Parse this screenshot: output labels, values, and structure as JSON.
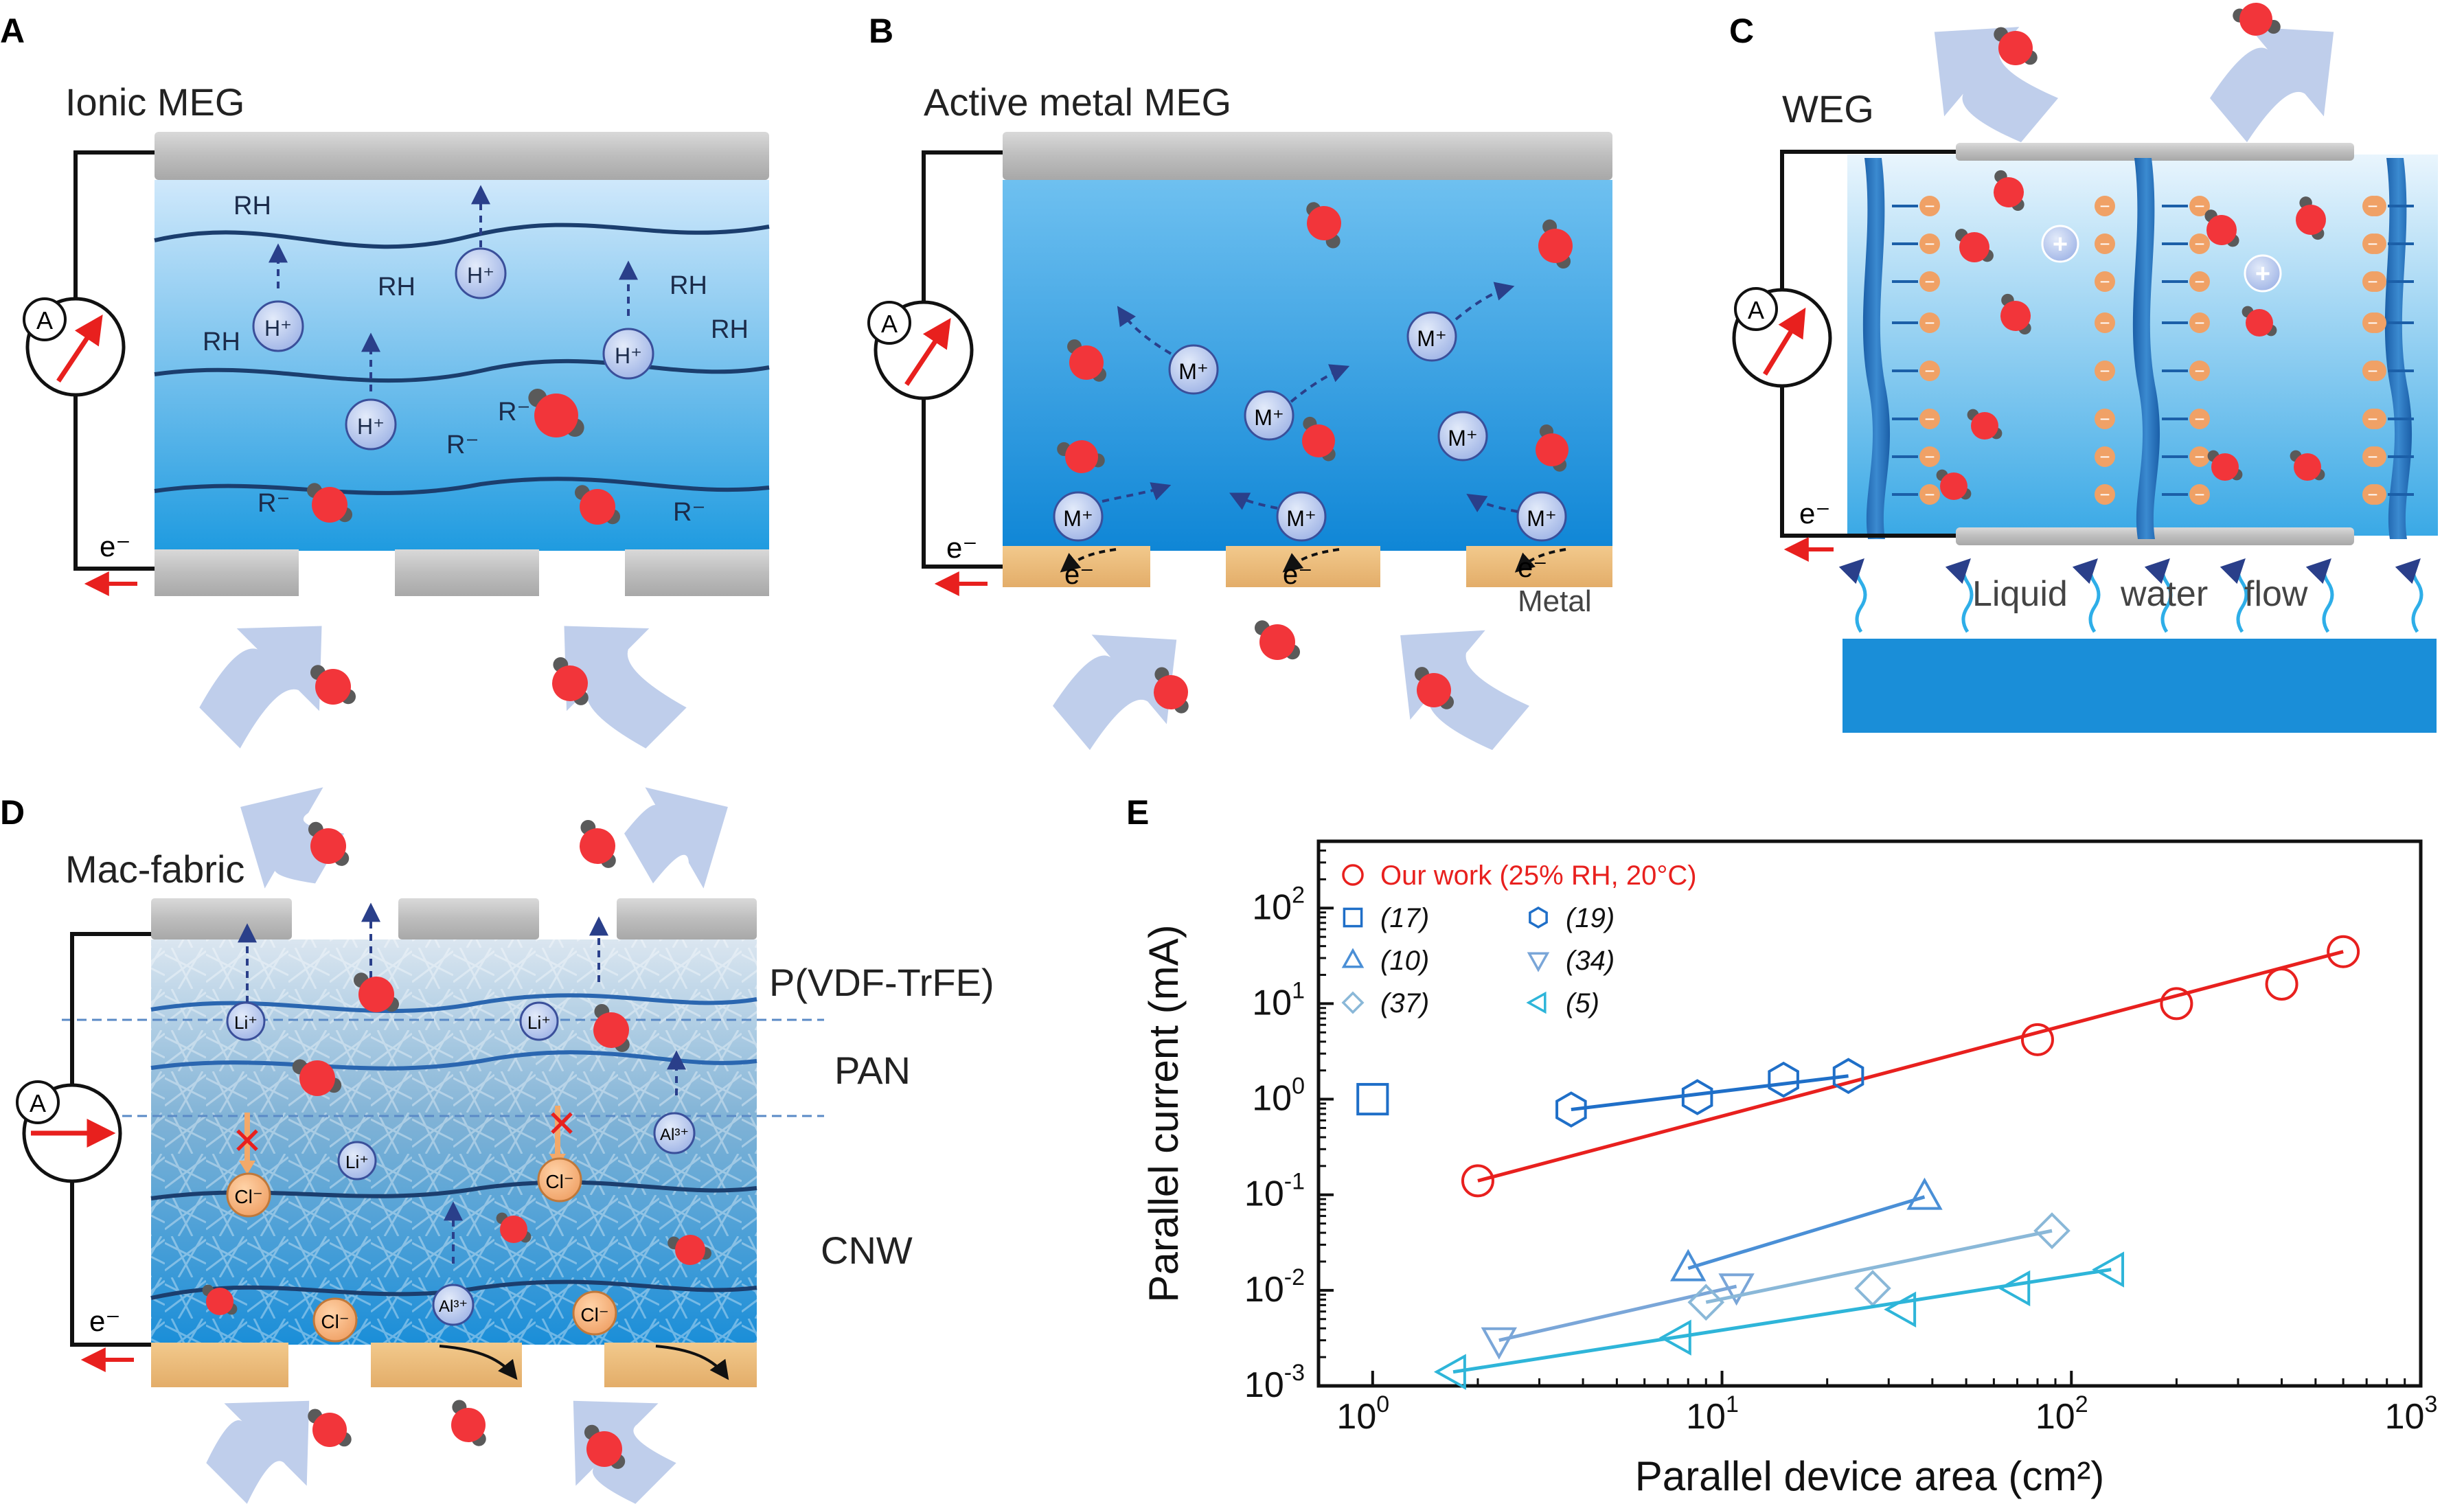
{
  "panels": {
    "A": {
      "letter": "A",
      "title": "Ionic MEG",
      "ion": "H⁺",
      "group": "RH",
      "anion": "R⁻",
      "electron": "e⁻",
      "ammeter": "A"
    },
    "B": {
      "letter": "B",
      "title": "Active metal MEG",
      "ion": "M⁺",
      "electron": "e⁻",
      "metal": "Metal",
      "ammeter": "A"
    },
    "C": {
      "letter": "C",
      "title": "WEG",
      "flow": [
        "Liquid",
        "water",
        "flow"
      ],
      "plus": "+",
      "minus": "−",
      "electron": "e⁻",
      "ammeter": "A"
    },
    "D": {
      "letter": "D",
      "title": "Mac-fabric",
      "layers": [
        "P(VDF-TrFE)",
        "PAN",
        "CNW"
      ],
      "li": "Li⁺",
      "al": "Al³⁺",
      "cl": "Cl⁻",
      "electron": "e⁻",
      "ammeter": "A"
    },
    "E": {
      "letter": "E"
    }
  },
  "chart_data": {
    "type": "scatter",
    "xlabel": "Parallel device area (cm²)",
    "ylabel": "Parallel current (mA)",
    "xscale": "log",
    "yscale": "log",
    "xlim": [
      0.7,
      1000
    ],
    "ylim": [
      0.001,
      500
    ],
    "xticks": [
      {
        "value": 1,
        "base": "10",
        "exp": "0"
      },
      {
        "value": 10,
        "base": "10",
        "exp": "1"
      },
      {
        "value": 100,
        "base": "10",
        "exp": "2"
      },
      {
        "value": 1000,
        "base": "10",
        "exp": "3"
      }
    ],
    "yticks": [
      {
        "value": 0.001,
        "base": "10",
        "exp": "-3"
      },
      {
        "value": 0.01,
        "base": "10",
        "exp": "-2"
      },
      {
        "value": 0.1,
        "base": "10",
        "exp": "-1"
      },
      {
        "value": 1,
        "base": "10",
        "exp": "0"
      },
      {
        "value": 10,
        "base": "10",
        "exp": "1"
      },
      {
        "value": 100,
        "base": "10",
        "exp": "2"
      }
    ],
    "legend_position": "top-left",
    "series": [
      {
        "name": "Our work (25% RH, 20°C)",
        "marker": "circle",
        "color": "#e8201e",
        "line": true,
        "points": [
          [
            2,
            0.14
          ],
          [
            80,
            4.2
          ],
          [
            200,
            10
          ],
          [
            400,
            16
          ],
          [
            600,
            35
          ]
        ]
      },
      {
        "name": "(17)",
        "marker": "square",
        "color": "#1f6fc8",
        "line": false,
        "points": [
          [
            1,
            1.0
          ]
        ]
      },
      {
        "name": "(19)",
        "marker": "hexagon",
        "color": "#1f6fc8",
        "line": true,
        "points": [
          [
            3.7,
            0.78
          ],
          [
            8.5,
            1.05
          ],
          [
            15,
            1.6
          ],
          [
            23,
            1.75
          ]
        ]
      },
      {
        "name": "(10)",
        "marker": "triangle-up",
        "color": "#4a8fd6",
        "line": true,
        "points": [
          [
            8,
            0.017
          ],
          [
            38,
            0.095
          ]
        ]
      },
      {
        "name": "(34)",
        "marker": "triangle-down",
        "color": "#7aa6d8",
        "line": true,
        "points": [
          [
            2.3,
            0.003
          ],
          [
            11,
            0.011
          ]
        ]
      },
      {
        "name": "(37)",
        "marker": "diamond",
        "color": "#8ab8d8",
        "line": true,
        "points": [
          [
            9,
            0.0075
          ],
          [
            27,
            0.0105
          ],
          [
            88,
            0.042
          ]
        ]
      },
      {
        "name": "(5)",
        "marker": "triangle-left",
        "color": "#2eb5d9",
        "line": true,
        "points": [
          [
            1.7,
            0.0014
          ],
          [
            7.5,
            0.0032
          ],
          [
            33,
            0.0063
          ],
          [
            70,
            0.0105
          ],
          [
            130,
            0.0165
          ]
        ]
      }
    ]
  }
}
